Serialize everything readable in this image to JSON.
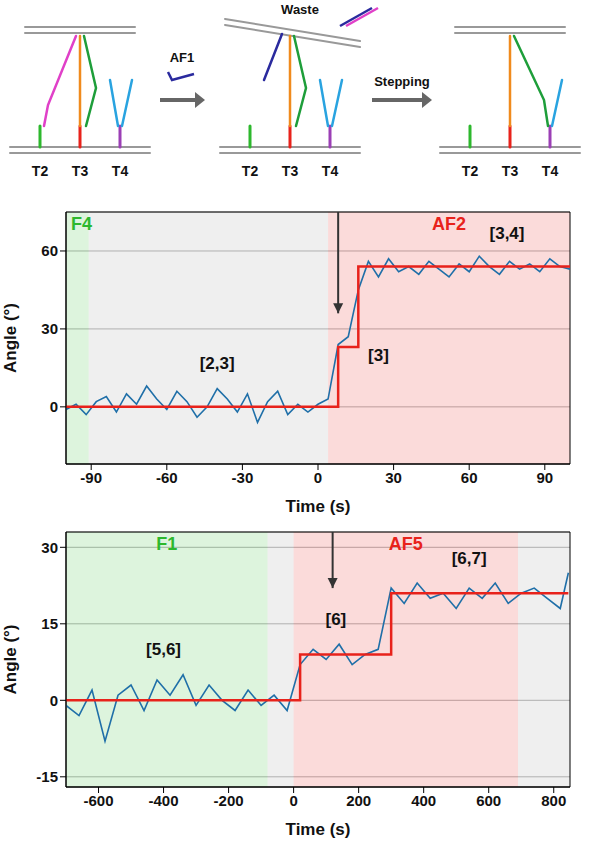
{
  "diagram": {
    "waste": "Waste",
    "reagent": "AF1",
    "step": "Stepping",
    "panels": [
      [
        "T2",
        "T3",
        "T4"
      ],
      [
        "T2",
        "T3",
        "T4"
      ],
      [
        "T2",
        "T3",
        "T4"
      ]
    ]
  },
  "chart_data": [
    {
      "type": "line",
      "x_label": "Time (s)",
      "y_label": "Angle (°)",
      "x": [
        -100,
        -96,
        -92,
        -88,
        -84,
        -80,
        -76,
        -72,
        -68,
        -64,
        -60,
        -56,
        -52,
        -48,
        -44,
        -40,
        -36,
        -32,
        -28,
        -24,
        -20,
        -16,
        -12,
        -8,
        -4,
        0,
        4,
        8,
        12,
        16,
        20,
        24,
        28,
        32,
        36,
        40,
        44,
        48,
        52,
        56,
        60,
        64,
        68,
        72,
        76,
        80,
        84,
        88,
        92,
        96,
        100
      ],
      "xlim": [
        -100,
        100
      ],
      "xticks": [
        -90,
        -60,
        -30,
        0,
        30,
        60,
        90
      ],
      "ylim": [
        -22,
        75
      ],
      "yticks": [
        0,
        30,
        60
      ],
      "grid": true,
      "series": [
        {
          "color": "#1f6fa8",
          "values": [
            -1,
            1,
            -3,
            2,
            4,
            -2,
            5,
            1,
            8,
            3,
            -1,
            6,
            2,
            -4,
            0,
            7,
            3,
            -2,
            5,
            -6,
            2,
            6,
            -3,
            1,
            -2,
            1,
            3,
            24,
            27,
            45,
            56,
            50,
            57,
            52,
            54,
            51,
            56,
            53,
            50,
            55,
            52,
            58,
            54,
            51,
            56,
            53,
            55,
            52,
            57,
            54,
            53
          ]
        },
        {
          "color": "#e8221b",
          "line_style": "step",
          "values": [
            0,
            0,
            0,
            0,
            0,
            0,
            0,
            0,
            0,
            0,
            0,
            0,
            0,
            0,
            0,
            0,
            0,
            0,
            0,
            0,
            0,
            0,
            0,
            0,
            0,
            0,
            0,
            23,
            23,
            54,
            54,
            54,
            54,
            54,
            54,
            54,
            54,
            54,
            54,
            54,
            54,
            54,
            54,
            54,
            54,
            54,
            54,
            54,
            54,
            54,
            54
          ]
        }
      ],
      "regions": [
        {
          "label": "F4",
          "from": -100,
          "to": -91,
          "color": "#2db82d"
        },
        {
          "from": -91,
          "to": 4,
          "color": "#9a9a9a"
        },
        {
          "label": "AF2",
          "from": 4,
          "to": 100,
          "color": "#e8221b"
        }
      ],
      "annotations": [
        {
          "text": "[2,3]",
          "x": -40,
          "y": 17
        },
        {
          "text": "[3]",
          "x": 24,
          "y": 20
        },
        {
          "text": "[3,4]",
          "x": 75,
          "y": 67
        }
      ],
      "arrow": {
        "x": 8,
        "y": 36
      }
    },
    {
      "type": "line",
      "x_label": "Time (s)",
      "y_label": "Angle (°)",
      "x": [
        -700,
        -660,
        -620,
        -580,
        -540,
        -500,
        -460,
        -420,
        -380,
        -340,
        -300,
        -260,
        -220,
        -180,
        -140,
        -100,
        -60,
        -20,
        20,
        60,
        100,
        140,
        180,
        220,
        260,
        300,
        340,
        380,
        420,
        460,
        500,
        540,
        580,
        620,
        660,
        700,
        740,
        780,
        820,
        845
      ],
      "xlim": [
        -700,
        850
      ],
      "xticks": [
        -600,
        -400,
        -200,
        0,
        200,
        400,
        600,
        800
      ],
      "ylim": [
        -17,
        33
      ],
      "yticks": [
        -15,
        0,
        15,
        30
      ],
      "grid": true,
      "series": [
        {
          "color": "#1f6fa8",
          "values": [
            -1,
            -3,
            2,
            -8,
            1,
            3,
            -2,
            4,
            1,
            5,
            -1,
            3,
            0,
            -2,
            2,
            -1,
            1,
            -2,
            7,
            10,
            8,
            11,
            7,
            9,
            10,
            22,
            19,
            23,
            20,
            21,
            18,
            22,
            20,
            23,
            19,
            21,
            22,
            20,
            18,
            25
          ]
        },
        {
          "color": "#e8221b",
          "line_style": "step",
          "values": [
            0,
            0,
            0,
            0,
            0,
            0,
            0,
            0,
            0,
            0,
            0,
            0,
            0,
            0,
            0,
            0,
            0,
            0,
            9,
            9,
            9,
            9,
            9,
            9,
            9,
            21,
            21,
            21,
            21,
            21,
            21,
            21,
            21,
            21,
            21,
            21,
            21,
            21,
            21,
            21
          ]
        }
      ],
      "regions": [
        {
          "label": "F1",
          "from": -700,
          "to": -80,
          "color": "#2db82d"
        },
        {
          "from": -80,
          "to": 0,
          "color": "#9a9a9a"
        },
        {
          "label": "AF5",
          "from": 0,
          "to": 690,
          "color": "#e8221b"
        },
        {
          "from": 690,
          "to": 850,
          "color": "#9a9a9a"
        }
      ],
      "annotations": [
        {
          "text": "[5,6]",
          "x": -400,
          "y": 10
        },
        {
          "text": "[6]",
          "x": 130,
          "y": 16
        },
        {
          "text": "[6,7]",
          "x": 540,
          "y": 28
        }
      ],
      "arrow": {
        "x": 120,
        "y": 22
      }
    }
  ]
}
